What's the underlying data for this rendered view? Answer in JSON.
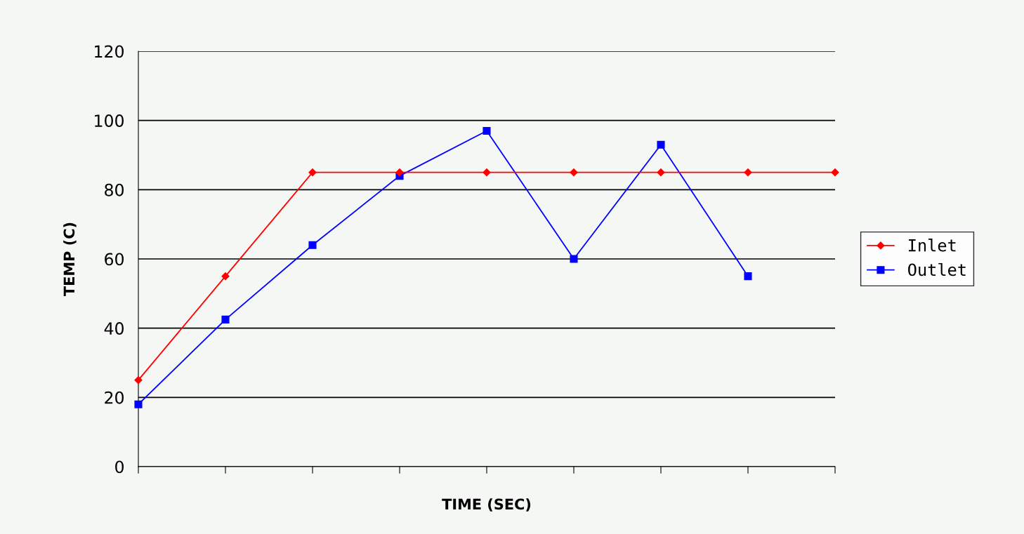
{
  "chart_data": {
    "type": "line",
    "xlabel": "TIME (SEC)",
    "ylabel": "TEMP (C)",
    "categories": [
      null,
      null,
      null,
      null,
      null,
      null,
      null,
      null,
      null
    ],
    "series": [
      {
        "name": "Inlet",
        "color": "#ff0000",
        "marker": "diamond",
        "values": [
          25,
          55,
          85,
          85,
          85,
          85,
          85,
          85,
          85
        ]
      },
      {
        "name": "Outlet",
        "color": "#0000ff",
        "marker": "square",
        "values": [
          18,
          42.5,
          64,
          84,
          97,
          60,
          93,
          55,
          null
        ]
      }
    ],
    "ylim": [
      0,
      120
    ],
    "yticks": [
      0,
      20,
      40,
      60,
      80,
      100,
      120
    ],
    "grid": "y",
    "legend": "right",
    "line_style": "solid"
  }
}
